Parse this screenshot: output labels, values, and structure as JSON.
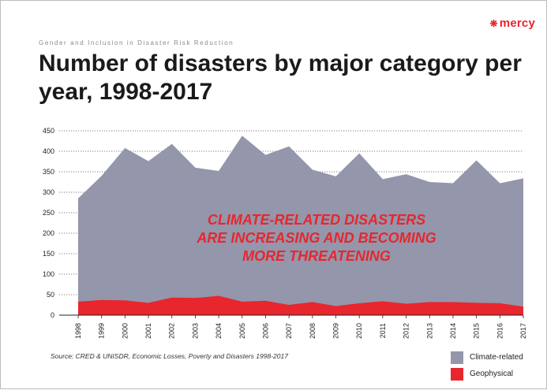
{
  "header": {
    "logo_text": "mercy",
    "subtitle": "Gender and Inclusion in Disaster Risk Reduction",
    "title": "Number of disasters by major category per year, 1998-2017"
  },
  "annotation": {
    "lines": [
      "CLIMATE-RELATED DISASTERS",
      "ARE INCREASING AND BECOMING",
      "MORE THREATENING"
    ]
  },
  "source": "Source: CRED & UNISDR, Economic Losses, Poverty and Disasters 1998-2017",
  "colors": {
    "climate": "#9496ab",
    "geophysical": "#e8262d",
    "accent": "#e8262d"
  },
  "chart_data": {
    "type": "area",
    "title": "Number of disasters by major category per year, 1998-2017",
    "x": [
      "1998",
      "1999",
      "2000",
      "2001",
      "2002",
      "2003",
      "2004",
      "2005",
      "2006",
      "2007",
      "2008",
      "2009",
      "2010",
      "2011",
      "2012",
      "2013",
      "2014",
      "2015",
      "2016",
      "2017"
    ],
    "yticks": [
      0,
      50,
      100,
      150,
      200,
      250,
      300,
      350,
      400,
      450
    ],
    "ylim": [
      0,
      450
    ],
    "grid": true,
    "stacked": true,
    "legend_position": "bottom-right",
    "series": [
      {
        "name": "Climate-related",
        "color": "#9496ab",
        "values": [
          252,
          303,
          372,
          346,
          375,
          318,
          305,
          405,
          356,
          387,
          323,
          317,
          366,
          298,
          316,
          293,
          290,
          348,
          293,
          313
        ]
      },
      {
        "name": "Geophysical",
        "color": "#e8262d",
        "values": [
          33,
          37,
          36,
          30,
          43,
          42,
          47,
          33,
          35,
          25,
          32,
          22,
          29,
          34,
          28,
          32,
          32,
          30,
          29,
          21
        ]
      }
    ]
  }
}
